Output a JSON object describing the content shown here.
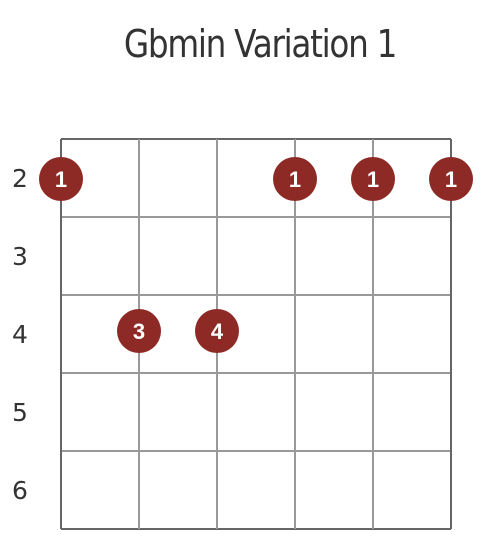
{
  "title": "Gbmin Variation 1",
  "colors": {
    "grid": "#999999",
    "grid_border": "#666666",
    "marker": "#8e2a25",
    "marker_text": "#ffffff",
    "label": "#333333"
  },
  "diagram": {
    "strings": 6,
    "fret_rows": 5,
    "fret_labels": [
      "2",
      "3",
      "4",
      "5",
      "6"
    ],
    "barre": {
      "fret": 2,
      "from_string": 1,
      "to_string": 6
    },
    "notes": [
      {
        "string": 1,
        "fret": 2,
        "finger": "1"
      },
      {
        "string": 4,
        "fret": 2,
        "finger": "1"
      },
      {
        "string": 5,
        "fret": 2,
        "finger": "1"
      },
      {
        "string": 6,
        "fret": 2,
        "finger": "1"
      },
      {
        "string": 2,
        "fret": 4,
        "finger": "3"
      },
      {
        "string": 3,
        "fret": 4,
        "finger": "4"
      }
    ]
  }
}
